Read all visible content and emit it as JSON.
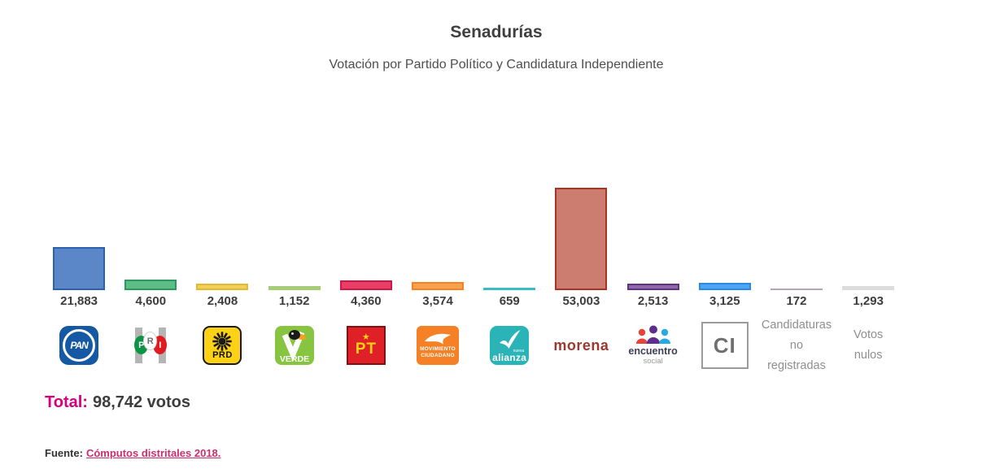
{
  "header": {
    "title": "Senadurías",
    "subtitle": "Votación por Partido Político y Candidatura Independiente"
  },
  "chart_data": {
    "type": "bar",
    "title": "Senadurías",
    "subtitle": "Votación por Partido Político y Candidatura Independiente",
    "unit": "votos",
    "ylim": [
      0,
      53003
    ],
    "grid": false,
    "categories": [
      "PAN",
      "PRI",
      "PRD",
      "Partido Verde",
      "PT",
      "Movimiento Ciudadano",
      "Nueva Alianza",
      "Morena",
      "Encuentro Social",
      "Candidatura Independiente",
      "Candidaturas no registradas",
      "Votos nulos"
    ],
    "values": [
      21883,
      4600,
      2408,
      1152,
      4360,
      3574,
      659,
      53003,
      2513,
      3125,
      172,
      1293
    ],
    "value_labels": [
      "21,883",
      "4,600",
      "2,408",
      "1,152",
      "4,360",
      "3,574",
      "659",
      "53,003",
      "2,513",
      "3,125",
      "172",
      "1,293"
    ],
    "bars": [
      {
        "party": "PAN",
        "fill": "#5b87c9",
        "border": "#2b62b0"
      },
      {
        "party": "PRI",
        "fill": "#5cbd86",
        "border": "#2a9a5c"
      },
      {
        "party": "PRD",
        "fill": "#f1d05a",
        "border": "#e0ba32"
      },
      {
        "party": "PVEM",
        "fill": "#a6cd77",
        "border": "#95c25d"
      },
      {
        "party": "PT",
        "fill": "#e73f66",
        "border": "#d01648"
      },
      {
        "party": "MC",
        "fill": "#f9a14f",
        "border": "#f08223"
      },
      {
        "party": "NA",
        "fill": "#3bbdc4",
        "border": "#3bbdc4"
      },
      {
        "party": "MORENA",
        "fill": "#cd7d6f",
        "border": "#a73325"
      },
      {
        "party": "PES",
        "fill": "#8f65ab",
        "border": "#5f3582"
      },
      {
        "party": "CI",
        "fill": "#4da4f4",
        "border": "#2a8ae2"
      },
      {
        "party": "CNR",
        "fill": "#b2a6bf",
        "border": "#b2a6bf"
      },
      {
        "party": "NULOS",
        "fill": "#dcdcdc",
        "border": "#c9c9c9"
      }
    ]
  },
  "logos": {
    "pan": {
      "text": "PAN"
    },
    "pri": {
      "p": "P",
      "r": "R",
      "i": "I"
    },
    "prd": {
      "text": "PRD"
    },
    "verde": {
      "text": "VERDE"
    },
    "pt": {
      "text": "PT",
      "star": "★"
    },
    "mc": {
      "line1": "MOVIMIENTO",
      "line2": "CIUDADANO"
    },
    "na": {
      "small": "nueva",
      "text": "alianza"
    },
    "morena": {
      "text": "morena"
    },
    "es": {
      "line1": "encuentro",
      "line2": "social"
    },
    "ci": {
      "text": "CI"
    }
  },
  "total": {
    "label": "Total:",
    "text": "98,742 votos"
  },
  "source": {
    "label": "Fuente:",
    "link_text": "Cómputos distritales 2018."
  },
  "colors": {
    "accent_pink": "#d5007f",
    "text_dark": "#3d3d3d",
    "text_gray": "#8f8f8f"
  }
}
